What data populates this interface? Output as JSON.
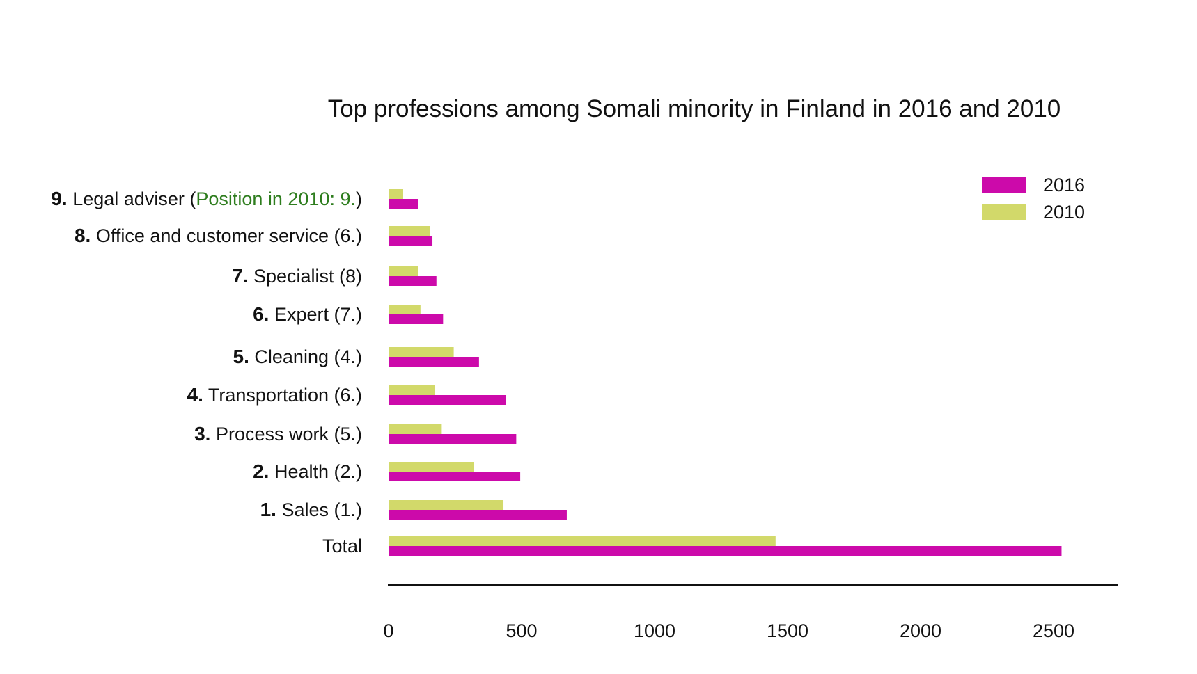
{
  "chart_data": {
    "type": "bar",
    "orientation": "horizontal",
    "title": "Top professions among Somali minority in Finland in 2016 and 2010",
    "categories": [
      {
        "rank": "9.",
        "name": " Legal adviser (",
        "note": "Position in 2010: 9.",
        "suffix": ")"
      },
      {
        "rank": "8.",
        "name": " Office and customer service (6.)",
        "note": "",
        "suffix": ""
      },
      {
        "rank": "7.",
        "name": " Specialist  (8)",
        "note": "",
        "suffix": ""
      },
      {
        "rank": "6.",
        "name": " Expert (7.)",
        "note": "",
        "suffix": ""
      },
      {
        "rank": "5.",
        "name": " Cleaning (4.)",
        "note": "",
        "suffix": ""
      },
      {
        "rank": "4.",
        "name": " Transportation (6.)",
        "note": "",
        "suffix": ""
      },
      {
        "rank": "3.",
        "name": " Process work (5.)",
        "note": "",
        "suffix": ""
      },
      {
        "rank": "2.",
        "name": " Health (2.)",
        "note": "",
        "suffix": ""
      },
      {
        "rank": "1.",
        "name": " Sales (1.)",
        "note": "",
        "suffix": ""
      },
      {
        "rank": "",
        "name": "Total",
        "note": "",
        "suffix": ""
      }
    ],
    "series": [
      {
        "name": "2016",
        "color": "#cc0aaa",
        "values": [
          110,
          165,
          180,
          205,
          340,
          440,
          480,
          495,
          670,
          2530
        ]
      },
      {
        "name": "2010",
        "color": "#d2d96a",
        "values": [
          55,
          155,
          110,
          120,
          245,
          175,
          200,
          322,
          432,
          1455
        ]
      }
    ],
    "xlim": [
      0,
      2660
    ],
    "xticks": [
      "0",
      "500",
      "1000",
      "1500",
      "2000",
      "2500"
    ],
    "xtick_values": [
      0,
      500,
      1000,
      1500,
      2000,
      2500
    ],
    "xlabel": "",
    "ylabel": "",
    "legend_position": "top-right",
    "grid": false,
    "note_color": "#2e7d1e"
  }
}
